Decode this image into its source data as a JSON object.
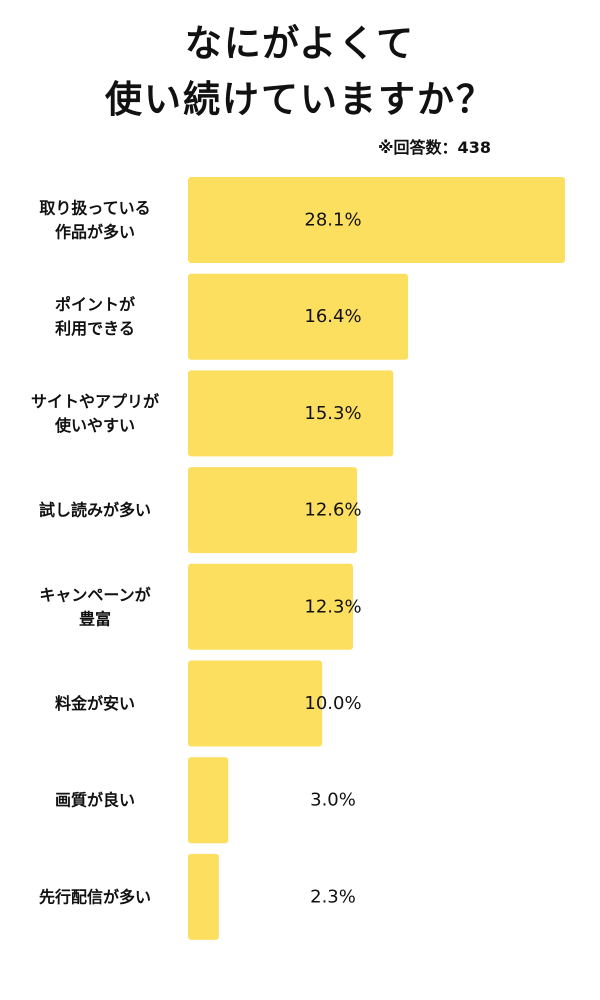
{
  "title_lines": [
    "なにがよくて",
    "使い続けていますか？"
  ],
  "note": "※回答数：438",
  "bar_color": "#FDDF5F",
  "chart_data": {
    "type": "bar",
    "orientation": "horizontal",
    "categories": [
      [
        "取り扱っている",
        "作品が多い"
      ],
      [
        "ポイントが",
        "利用できる"
      ],
      [
        "サイトやアプリが",
        "使いやすい"
      ],
      [
        "試し読みが多い"
      ],
      [
        "キャンペーンが",
        "豊富"
      ],
      [
        "料金が安い"
      ],
      [
        "画質が良い"
      ],
      [
        "先行配信が多い"
      ]
    ],
    "values": [
      28.1,
      16.4,
      15.3,
      12.6,
      12.3,
      10.0,
      3.0,
      2.3
    ],
    "value_labels": [
      "28.1%",
      "16.4%",
      "15.3%",
      "12.6%",
      "12.3%",
      "10.0%",
      "3.0%",
      "2.3%"
    ],
    "xlim": [
      0,
      28.1
    ],
    "grid": false,
    "legend": "none"
  }
}
